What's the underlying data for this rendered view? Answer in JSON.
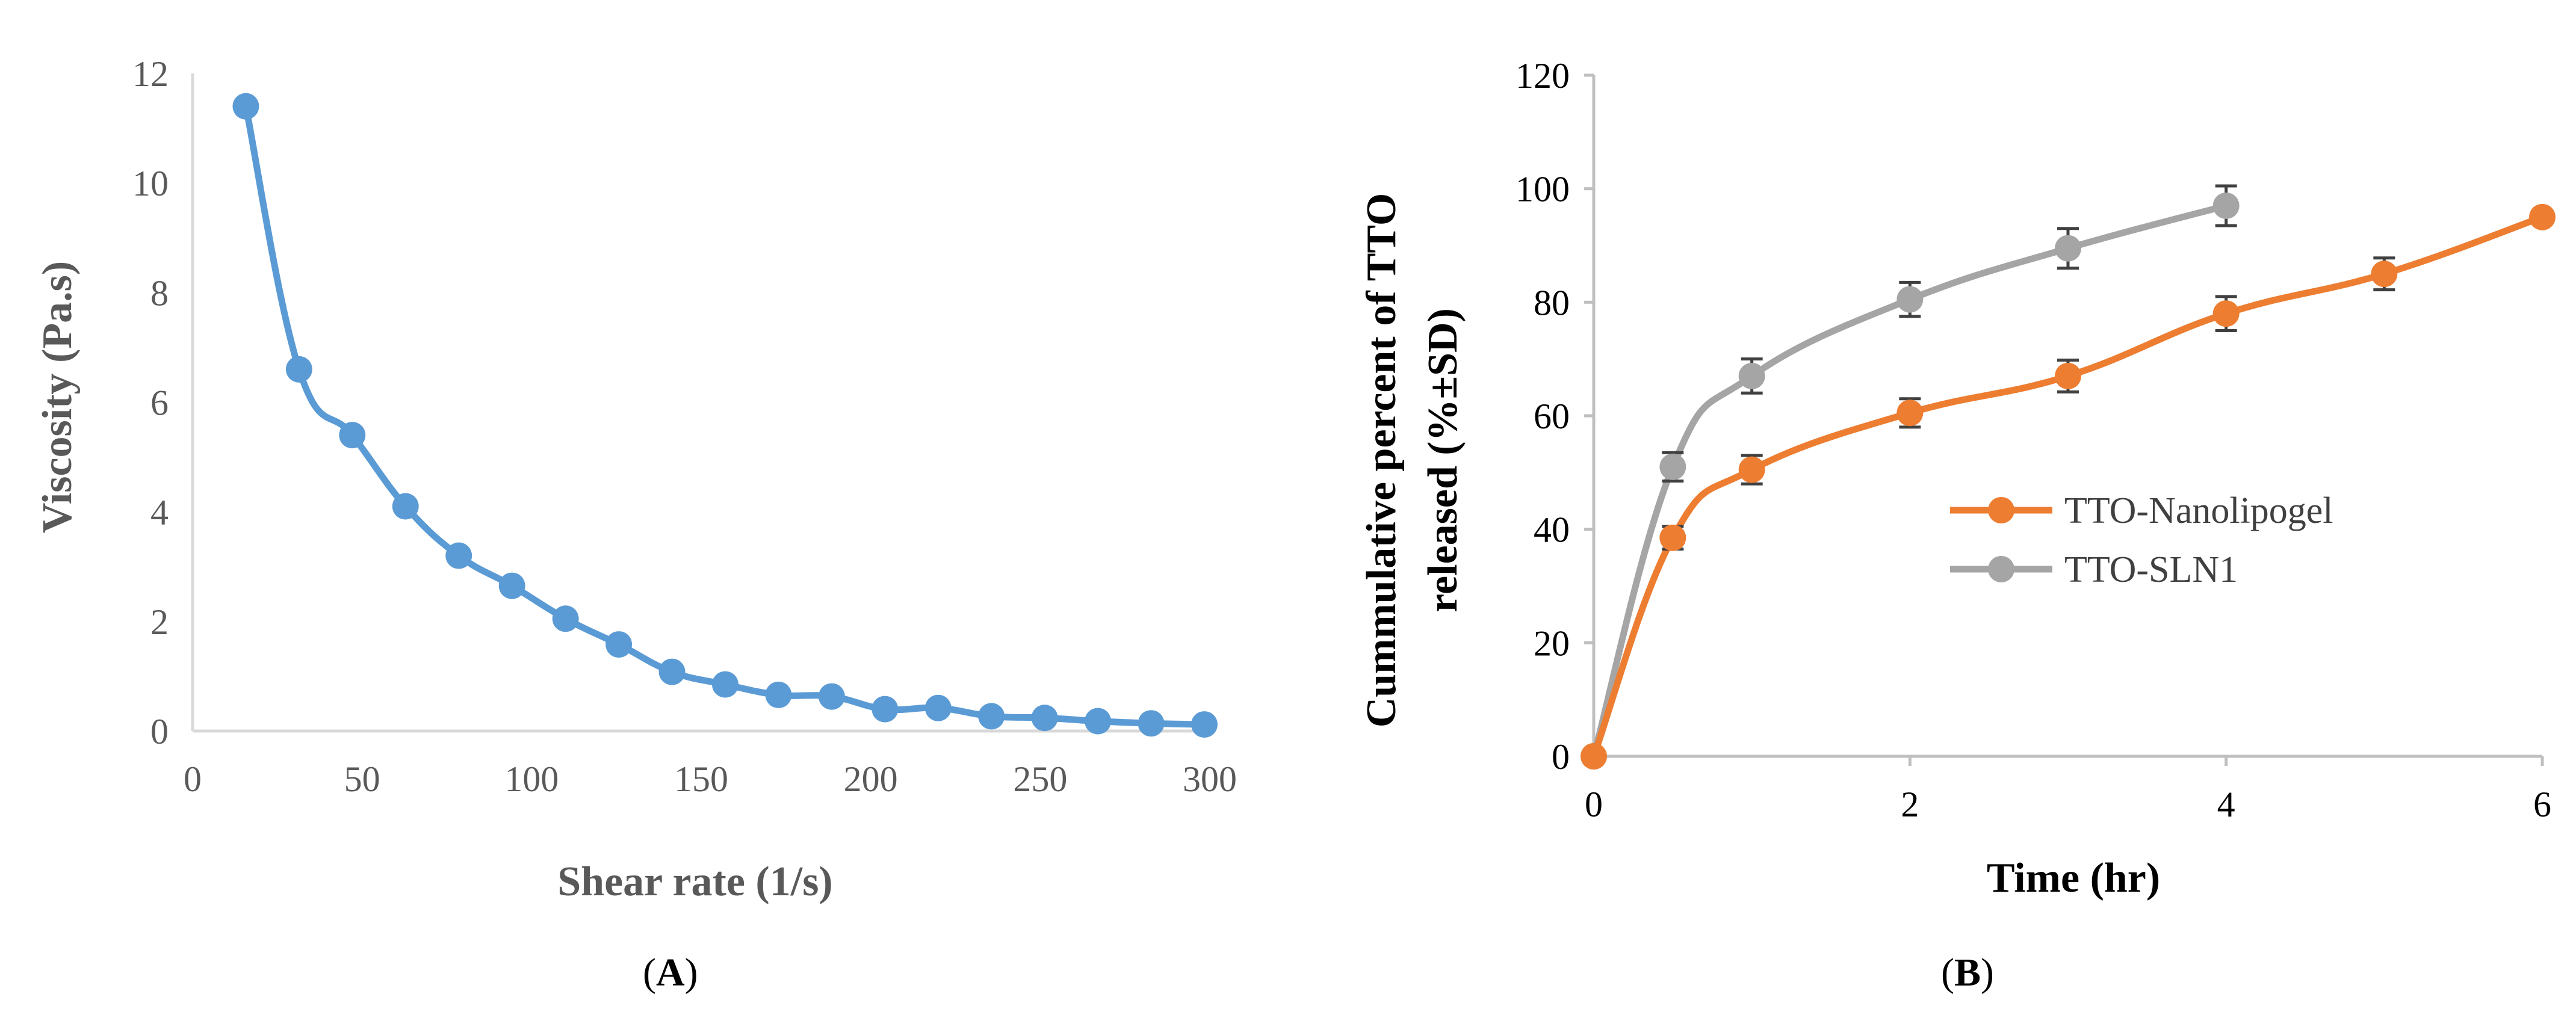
{
  "chart_data": [
    {
      "type": "line",
      "panel": "A",
      "title": "",
      "xlabel": "Shear rate (1/s)",
      "ylabel": "Viscosity (Pa.s)",
      "xlim": [
        0,
        300
      ],
      "ylim": [
        0,
        12
      ],
      "xticks": [
        0,
        50,
        100,
        150,
        200,
        250,
        300
      ],
      "yticks": [
        0,
        2,
        4,
        6,
        8,
        10,
        12
      ],
      "grid": false,
      "series": [
        {
          "name": "Viscosity",
          "color": "#5B9BD5",
          "x": [
            15.7,
            31.4,
            47.1,
            62.8,
            78.5,
            94.2,
            110,
            125.7,
            141.4,
            157.1,
            172.8,
            188.5,
            204.2,
            219.9,
            235.6,
            251.3,
            267,
            282.7,
            298.4
          ],
          "y": [
            11.4,
            6.6,
            5.4,
            4.1,
            3.2,
            2.65,
            2.05,
            1.58,
            1.08,
            0.85,
            0.66,
            0.63,
            0.4,
            0.42,
            0.27,
            0.24,
            0.18,
            0.14,
            0.12
          ]
        }
      ]
    },
    {
      "type": "line",
      "panel": "B",
      "title": "",
      "xlabel": "Time (hr)",
      "ylabel": "Cummulative percent of TTO released (%±SD)",
      "ylabel_lines": [
        "Cummulative percent of TTO",
        "released (%±SD)"
      ],
      "xlim": [
        0,
        6
      ],
      "ylim": [
        0,
        120
      ],
      "xticks": [
        0,
        2,
        4,
        6
      ],
      "yticks": [
        0,
        20,
        40,
        60,
        80,
        100,
        120
      ],
      "grid": false,
      "legend_position": "right",
      "series": [
        {
          "name": "TTO-Nanolipogel",
          "color": "#ED7D31",
          "x": [
            0,
            0.5,
            1,
            2,
            3,
            4,
            5,
            6
          ],
          "y": [
            0,
            38.5,
            50.5,
            60.5,
            67,
            78,
            85,
            95
          ],
          "err": [
            0,
            2,
            2.5,
            2.5,
            2.8,
            3,
            2.8,
            0
          ]
        },
        {
          "name": "TTO-SLN1",
          "color": "#A5A5A5",
          "x": [
            0,
            0.5,
            1,
            2,
            3,
            4
          ],
          "y": [
            0,
            51,
            67,
            80.5,
            89.5,
            97
          ],
          "err": [
            0,
            2.5,
            3,
            3,
            3.5,
            3.5
          ]
        }
      ]
    }
  ],
  "panel_labels": {
    "A": "A",
    "B": "B"
  }
}
